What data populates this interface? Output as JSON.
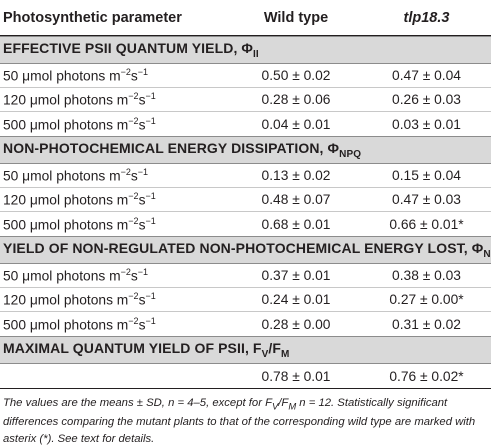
{
  "header": {
    "col1": "Photosynthetic parameter",
    "col2": "Wild type",
    "col3": "tlp18.3"
  },
  "sections": [
    {
      "title": "EFFECTIVE PSII QUANTUM YIELD, Φ",
      "title_sub": "II",
      "rows": [
        {
          "prefix": "50 μmol photons m",
          "sup1": "−2",
          "mid": "s",
          "sup2": "−1",
          "wt": "0.50 ± 0.02",
          "mut": "0.47 ± 0.04"
        },
        {
          "prefix": "120 μmol photons m",
          "sup1": "−2",
          "mid": "s",
          "sup2": "−1",
          "wt": "0.28 ± 0.06",
          "mut": "0.26 ± 0.03"
        },
        {
          "prefix": "500 μmol photons m",
          "sup1": "−2",
          "mid": "s",
          "sup2": "−1",
          "wt": "0.04 ± 0.01",
          "mut": "0.03 ± 0.01"
        }
      ]
    },
    {
      "title": "NON-PHOTOCHEMICAL ENERGY DISSIPATION, Φ",
      "title_sub": "NPQ",
      "rows": [
        {
          "prefix": "50 μmol photons m",
          "sup1": "−2",
          "mid": "s",
          "sup2": "−1",
          "wt": "0.13 ± 0.02",
          "mut": "0.15 ± 0.04"
        },
        {
          "prefix": "120 μmol photons m",
          "sup1": "−2",
          "mid": "s",
          "sup2": "−1",
          "wt": "0.48 ± 0.07",
          "mut": "0.47 ± 0.03"
        },
        {
          "prefix": "500 μmol photons m",
          "sup1": "−2",
          "mid": "s",
          "sup2": "−1",
          "wt": "0.68 ± 0.01",
          "mut": "0.66 ± 0.01*"
        }
      ]
    },
    {
      "title": "YIELD OF NON-REGULATED NON-PHOTOCHEMICAL ENERGY LOST, Φ",
      "title_sub": "NO",
      "rows": [
        {
          "prefix": "50 μmol photons m",
          "sup1": "−2",
          "mid": "s",
          "sup2": "−1",
          "wt": "0.37 ± 0.01",
          "mut": "0.38 ± 0.03"
        },
        {
          "prefix": "120 μmol photons m",
          "sup1": "−2",
          "mid": "s",
          "sup2": "−1",
          "wt": "0.24 ± 0.01",
          "mut": "0.27 ± 0.00*"
        },
        {
          "prefix": "500 μmol photons m",
          "sup1": "−2",
          "mid": "s",
          "sup2": "−1",
          "wt": "0.28 ± 0.00",
          "mut": "0.31 ± 0.02"
        }
      ]
    },
    {
      "title": "MAXIMAL QUANTUM YIELD OF PSII, F",
      "title_sub": "V",
      "title_mid": "/F",
      "title_sub2": "M",
      "rows": [
        {
          "prefix": "",
          "sup1": "",
          "mid": "",
          "sup2": "",
          "wt": "0.78 ± 0.01",
          "mut": "0.76 ± 0.02*"
        }
      ]
    }
  ],
  "footnote": {
    "part1": "The values are the means ± SD, n = 4–5, except for F",
    "sub1": "V",
    "part2": "/F",
    "sub2": "M",
    "part3": " n = 12. Statistically significant differences comparing the mutant plants to that of the corresponding wild type are marked with asterix (*). See text for details."
  }
}
